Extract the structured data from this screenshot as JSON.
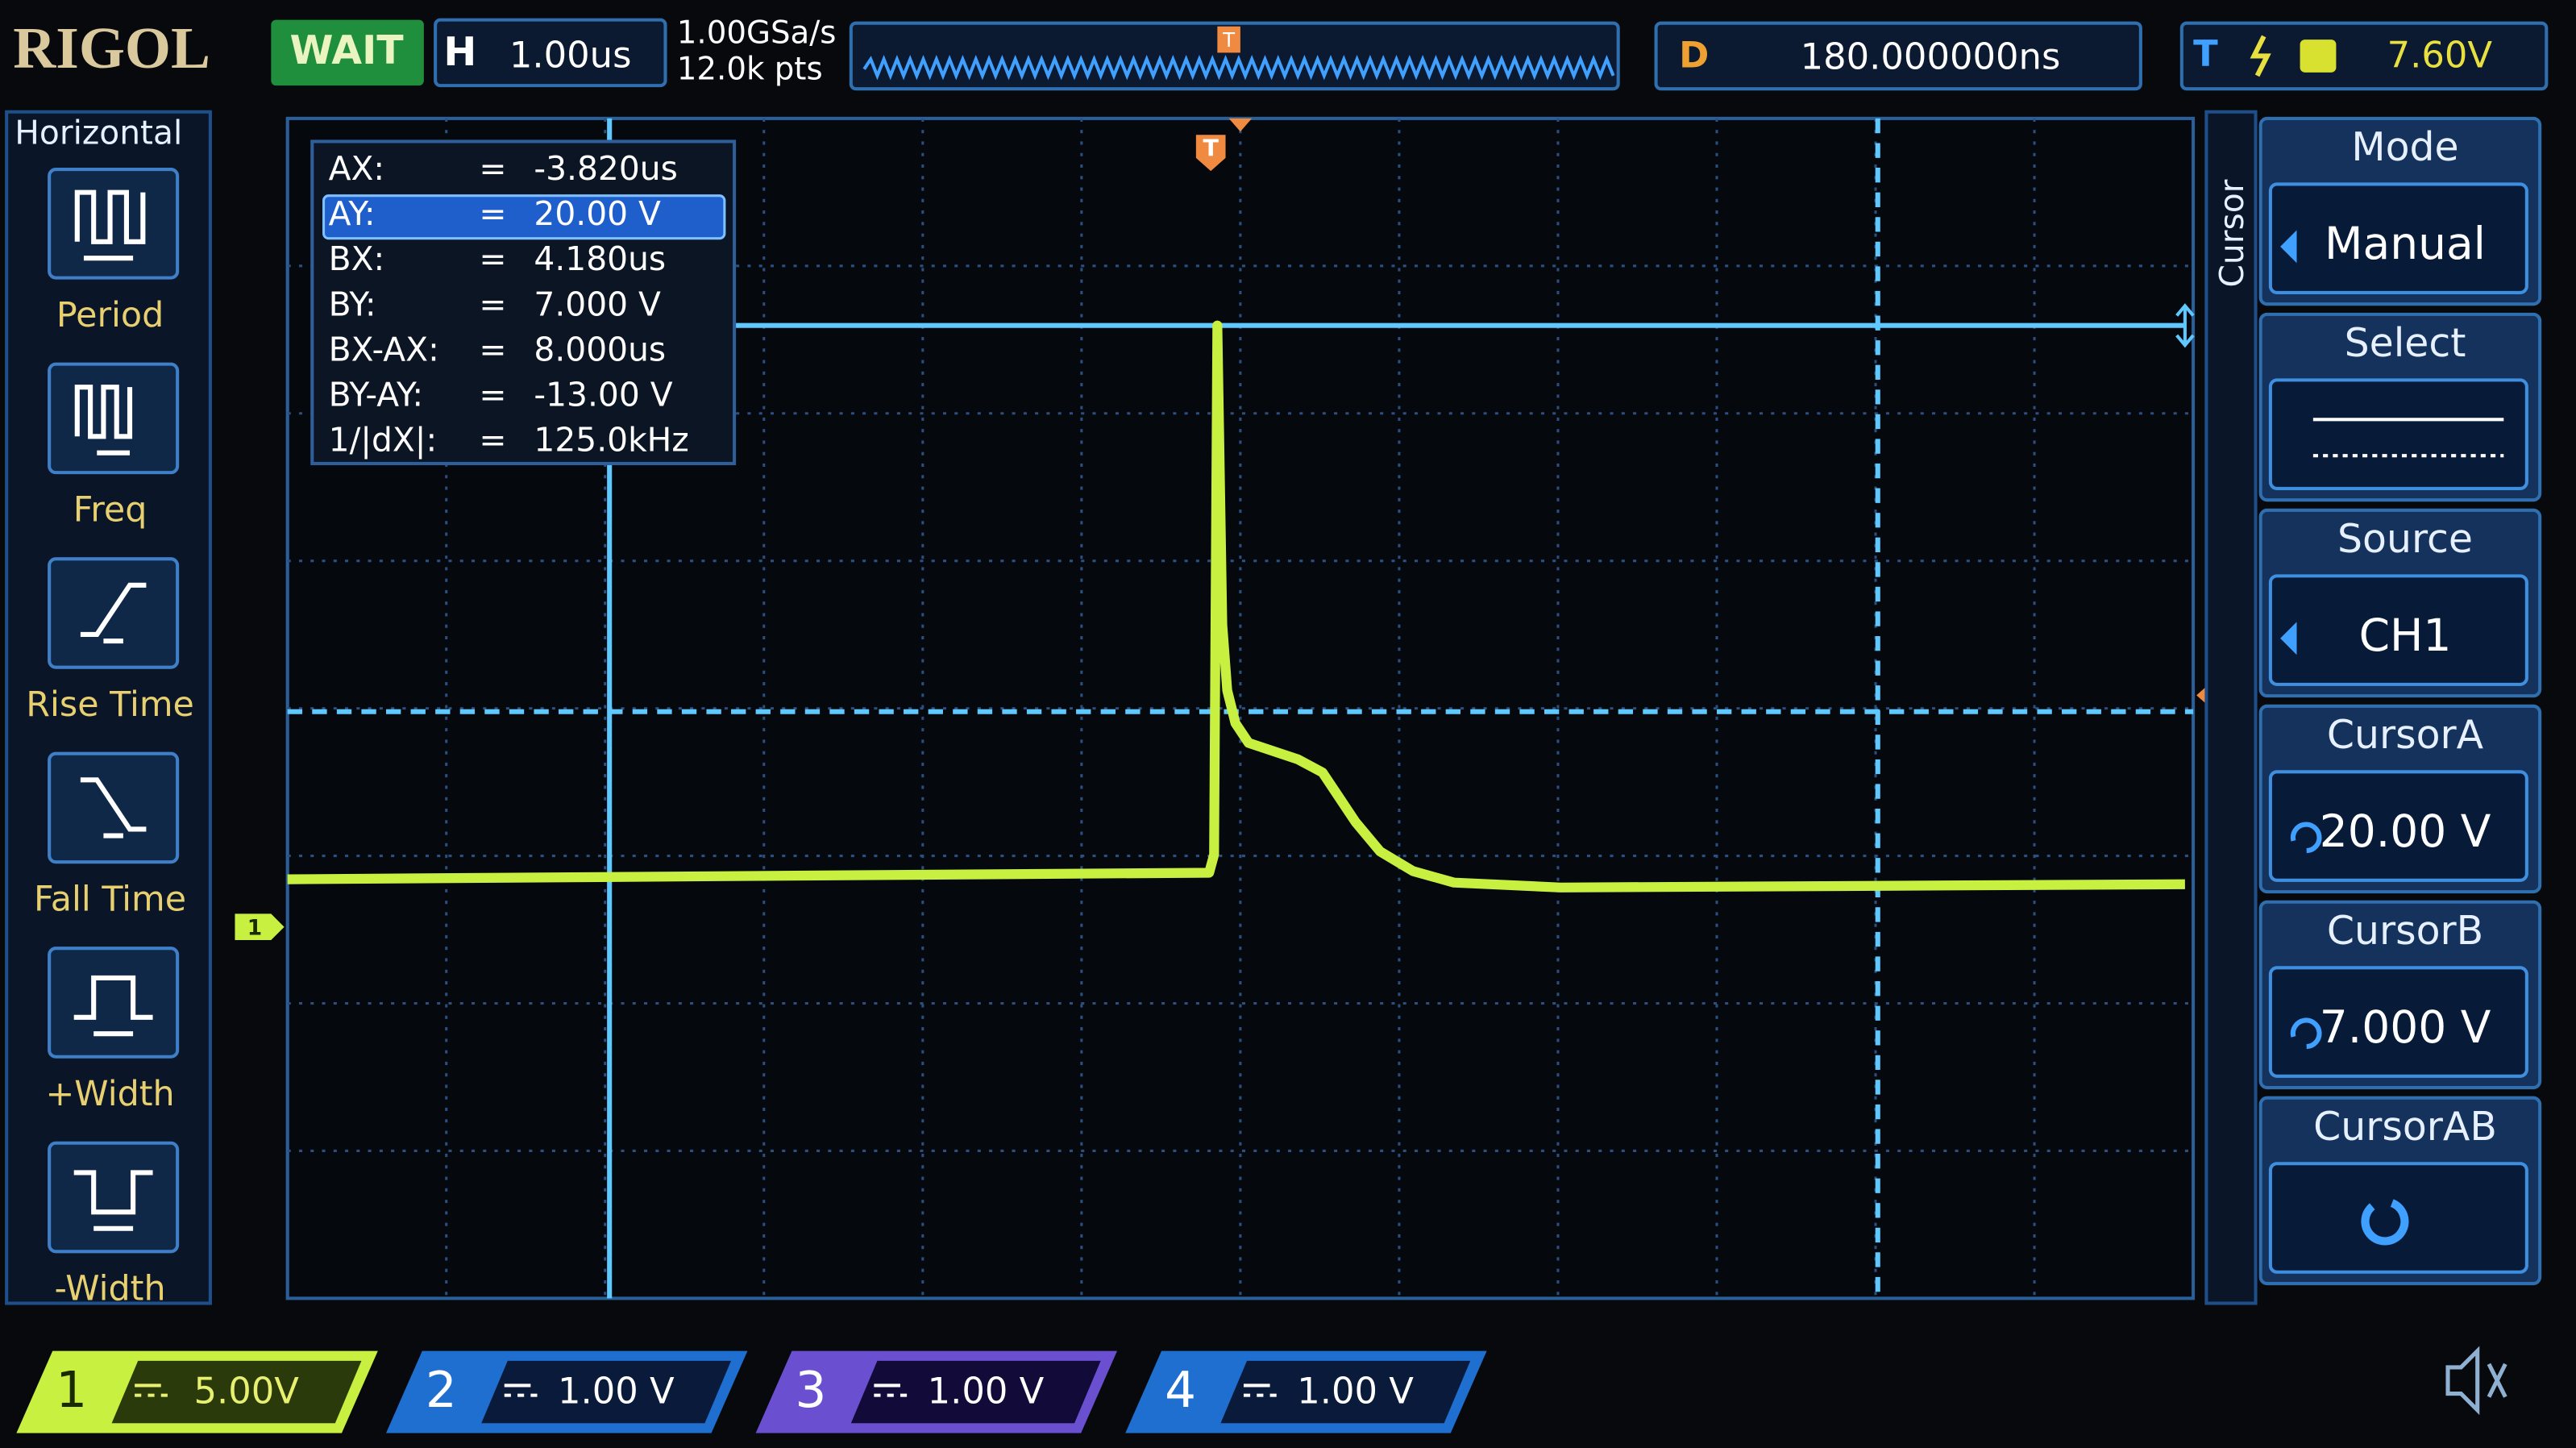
{
  "header": {
    "brand": "RIGOL",
    "status": "WAIT",
    "timebase_label": "H",
    "timebase": "1.00us",
    "sample_rate": "1.00GSa/s",
    "memory_depth": "12.0k pts",
    "delay_label": "D",
    "delay": "180.000000ns",
    "trigger_label": "T",
    "trigger_level": "7.60V"
  },
  "left_menu": {
    "title": "Horizontal",
    "items": [
      "Period",
      "Freq",
      "Rise Time",
      "Fall Time",
      "+Width",
      "-Width"
    ]
  },
  "cursor_readout": {
    "rows": [
      [
        "AX:",
        "=",
        "-3.820us"
      ],
      [
        "AY:",
        "=",
        "20.00 V"
      ],
      [
        "BX:",
        "=",
        "4.180us"
      ],
      [
        "BY:",
        "=",
        "7.000 V"
      ],
      [
        "BX-AX:",
        "=",
        "8.000us"
      ],
      [
        "BY-AY:",
        "=",
        "-13.00 V"
      ],
      [
        "1/|dX|:",
        "=",
        "125.0kHz"
      ]
    ]
  },
  "right_menu": {
    "title": "Cursor",
    "items": [
      {
        "label": "Mode",
        "value": "Manual"
      },
      {
        "label": "Select"
      },
      {
        "label": "Source",
        "value": "CH1"
      },
      {
        "label": "CursorA",
        "value": "20.00 V"
      },
      {
        "label": "CursorB",
        "value": "7.000 V"
      },
      {
        "label": "CursorAB"
      }
    ]
  },
  "markers": {
    "overview_trigger": "T",
    "top_trigger": "T",
    "level_trigger": "T",
    "channel": "1"
  },
  "channels": [
    {
      "number": "1",
      "scale": "5.00V"
    },
    {
      "number": "2",
      "scale": "1.00 V"
    },
    {
      "number": "3",
      "scale": "1.00 V"
    },
    {
      "number": "4",
      "scale": "1.00 V"
    }
  ]
}
